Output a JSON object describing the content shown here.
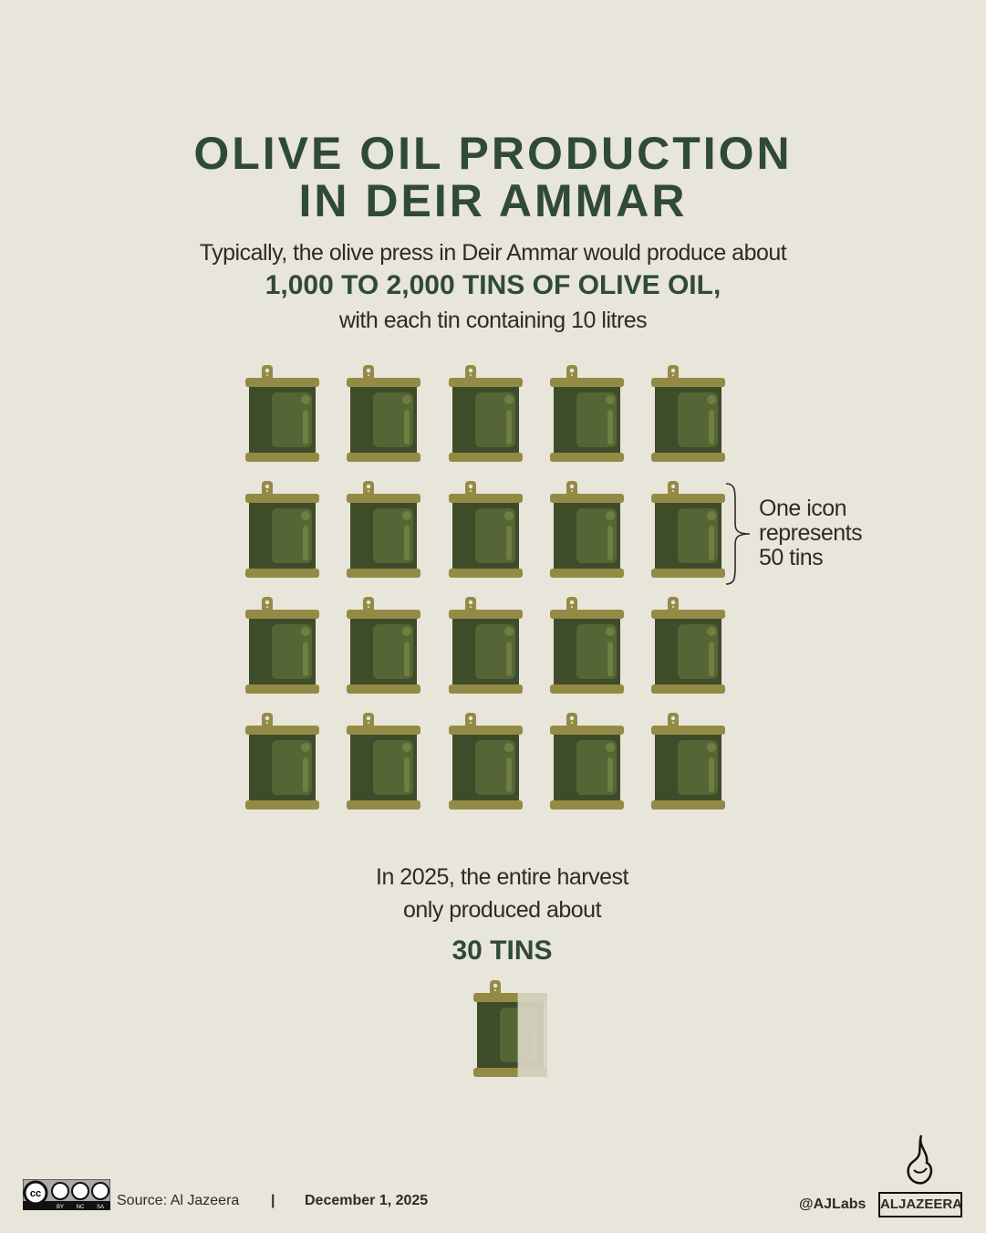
{
  "title": {
    "line1": "OLIVE OIL PRODUCTION",
    "line2": "IN DEIR AMMAR"
  },
  "intro": {
    "line1": "Typically, the olive press in Deir Ammar would produce about",
    "highlight": "1,000 TO 2,000 TINS OF OLIVE OIL,",
    "line3": "with each tin containing 10 litres"
  },
  "pictogram": {
    "icon": "olive-oil-tin-icon",
    "typical_icon_count": 20,
    "tins_per_icon": 50,
    "legend": [
      "One icon",
      "represents",
      "50 tins"
    ],
    "colors": {
      "rim": "#938b45",
      "body": "#3f4c2a",
      "panel": "#556535",
      "accent": "#6e7f41",
      "faded": "#d8d5c3"
    }
  },
  "result": {
    "line1": "In 2025, the entire harvest",
    "line2": "only produced about",
    "highlight": "30 TINS",
    "tins": 30
  },
  "footer": {
    "license_icon": "cc-by-nc-sa-icon",
    "license_labels": [
      "BY",
      "NC",
      "SA"
    ],
    "source": "Source:  Al Jazeera",
    "separator": "|",
    "date": "December 1, 2025",
    "handle": "@AJLabs",
    "brand": "ALJAZEERA"
  }
}
